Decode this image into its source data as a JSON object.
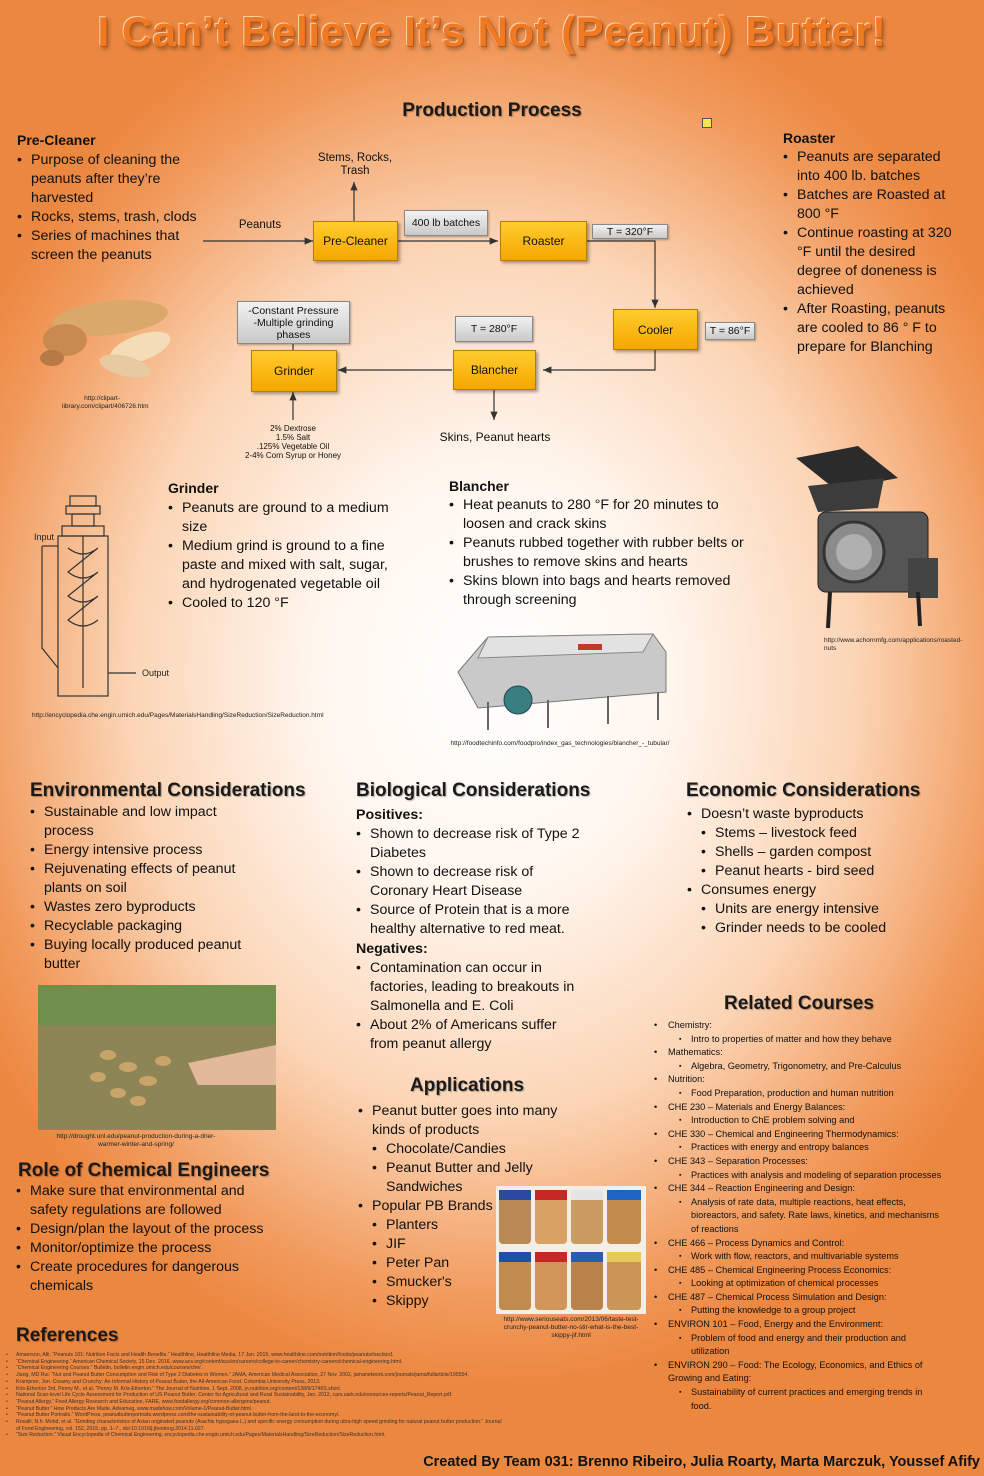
{
  "title": "I Can’t Believe It’s Not (Peanut) Butter!",
  "production": {
    "heading": "Production Process",
    "flow": {
      "stems": "Stems, Rocks, Trash",
      "peanuts": "Peanuts",
      "precleaner": "Pre-Cleaner",
      "batches": "400 lb batches",
      "roaster": "Roaster",
      "t320": "T = 320°F",
      "cooler": "Cooler",
      "t86": "T = 86°F",
      "blancher": "Blancher",
      "t280": "T = 280°F",
      "grinder": "Grinder",
      "pressure": "-Constant Pressure\n-Multiple grinding phases",
      "skins": "Skins, Peanut hearts",
      "additives": "2% Dextrose\n1.5% Salt\n.125% Vegetable Oil\n2-4% Corn Syrup or Honey"
    }
  },
  "precleaner": {
    "heading": "Pre-Cleaner",
    "items": [
      "Purpose of cleaning the peanuts after they’re harvested",
      "Rocks, stems, trash, clods",
      "Series of machines that screen the peanuts"
    ]
  },
  "roaster": {
    "heading": "Roaster",
    "items": [
      "Peanuts are separated into 400 lb. batches",
      "Batches are Roasted at 800 °F",
      "Continue roasting at 320 °F until the desired degree of doneness is achieved",
      "After Roasting, peanuts are cooled to 86 ° F to prepare for Blanching"
    ]
  },
  "grinder": {
    "heading": "Grinder",
    "items": [
      "Peanuts are ground to a medium size",
      "Medium grind is ground to a fine paste and mixed with salt, sugar, and hydrogenated vegetable oil",
      "Cooled to 120 °F"
    ]
  },
  "blancher": {
    "heading": "Blancher",
    "items": [
      "Heat peanuts to 280 °F for 20 minutes to loosen and crack skins",
      "Peanuts rubbed together with rubber belts or brushes to remove skins and hearts",
      "Skins blown into bags and hearts removed through screening"
    ]
  },
  "captions": {
    "peanuts": "http://clipart-library.com/clipart/406726.htm",
    "grinder": "http://encyclopedia.che.engin.umich.edu/Pages/MaterialsHandling/SizeReduction/SizeReduction.html",
    "blancher": "http://foodtechinfo.com/foodpro/index_gas_technologies/blancher_-_tubular/",
    "roaster": "http://www.achornmfg.com/applications/roasted-nuts",
    "plants": "http://drought.unl.edu/peanut-production-during-a-drier-warmer-winter-and-spring/",
    "jars": "http://www.seriouseats.com/2013/06/taste-test-crunchy-peanut-butter-no-stir-what-is-the-best-skippy-jif.html",
    "input": "Input",
    "output": "Output"
  },
  "environmental": {
    "heading": "Environmental Considerations",
    "items": [
      "Sustainable and low impact process",
      "Energy intensive process",
      "Rejuvenating effects of peanut plants on soil",
      "Wastes zero byproducts",
      "Recyclable packaging",
      "Buying locally produced peanut butter"
    ]
  },
  "biological": {
    "heading": "Biological Considerations",
    "positives_label": "Positives:",
    "positives": [
      "Shown to decrease risk of Type 2 Diabetes",
      "Shown to decrease risk of Coronary Heart Disease",
      "Source of Protein that is a more healthy alternative to red meat."
    ],
    "negatives_label": "Negatives:",
    "negatives": [
      "Contamination can occur in factories, leading to breakouts in Salmonella and E. Coli",
      "About 2% of Americans suffer from peanut allergy"
    ]
  },
  "economic": {
    "heading": "Economic Considerations",
    "b1": "Doesn’t waste byproducts",
    "s1": [
      "Stems – livestock feed",
      "Shells – garden compost",
      "Peanut hearts - bird seed"
    ],
    "b2": "Consumes energy",
    "s2": [
      "Units are energy intensive",
      "Grinder needs to be cooled"
    ]
  },
  "applications": {
    "heading": "Applications",
    "b1": "Peanut butter goes into many kinds of products",
    "s1": [
      "Chocolate/Candies",
      "Peanut Butter and Jelly Sandwiches"
    ],
    "b2": "Popular PB Brands",
    "s2": [
      "Planters",
      "JIF",
      "Peter Pan",
      "Smucker's",
      "Skippy"
    ]
  },
  "role": {
    "heading": "Role of Chemical Engineers",
    "items": [
      "Make sure that environmental and safety regulations are followed",
      "Design/plan the layout of the process",
      "Monitor/optimize the process",
      "Create procedures for dangerous chemicals"
    ]
  },
  "courses": {
    "heading": "Related Courses",
    "list": [
      {
        "name": "Chemistry:",
        "detail": "Intro to properties of matter and how they behave"
      },
      {
        "name": "Mathematics:",
        "detail": "Algebra, Geometry, Trigonometry, and Pre-Calculus"
      },
      {
        "name": "Nutrition:",
        "detail": "Food Preparation, production and human nutrition"
      },
      {
        "name": "CHE 230 – Materials and Energy Balances:",
        "detail": "Introduction to ChE problem solving and"
      },
      {
        "name": "CHE 330 – Chemical and Engineering Thermodynamics:",
        "detail": "Practices with energy and entropy balances"
      },
      {
        "name": "CHE 343 – Separation Processes:",
        "detail": "Practices with analysis and modeling of separation processes"
      },
      {
        "name": "CHE 344 – Reaction Engineering and Design:",
        "detail": "Analysis of rate data, multiple reactions, heat effects, bioreactors, and safety. Rate laws, kinetics, and mechanisms of reactions"
      },
      {
        "name": "CHE 466 – Process Dynamics and Control:",
        "detail": "Work with flow, reactors, and multivariable systems"
      },
      {
        "name": "CHE 485 – Chemical Engineering Process Economics:",
        "detail": "Looking at optimization of chemical processes"
      },
      {
        "name": "CHE 487 – Chemical Process Simulation and Design:",
        "detail": "Putting the knowledge to a group project"
      },
      {
        "name": "ENVIRON 101 – Food, Energy and the Environment:",
        "detail": "Problem of food and energy and their production and utilization"
      },
      {
        "name": "ENVIRON 290 – Food: The Ecology, Economics, and Ethics of Growing and Eating:",
        "detail": "Sustainability of current practices and emerging trends in food."
      }
    ]
  },
  "references": {
    "heading": "References",
    "items": [
      "Amaerson, Atli. “Peanuts 101: Nutrition Facts and Health Benefits.” Healthline, Healthline Media, 17 Jan. 2015, www.healthline.com/nutrition/foods/peanuts#section1",
      "“Chemical Engineering.” American Chemical Society, 15 Dec. 2016, www.acs.org/content/acs/en/careers/college-to-career/chemistry-careers/chemical-engineering.html.",
      "“Chemical Engineering Courses.” Bulletin, bulletin.engin.umich.edu/courses/che/.",
      "Jiang, MD Rui. “Nut and Peanut Butter Consumption and Risk of Type 2 Diabetes in Women.” JAMA, American Medical Association, 27 Nov. 2002, jamanetwork.com/journals/jama/fullarticle/195554.",
      "Krampner, Jon. Creamy and Crunchy: An Informal History of Peanut Butter, the All-American Food. Columbia University Press, 2013.",
      "Kris-Etherton 3rd, Penny M., et al. “Penny M. Kris-Etherton.” The Journal of Nutrition, 1 Sept. 2008, jn.nutrition.org/content/138/9/1746S.short.",
      "National Scan-level Life Cycle Assessment for Production of US Peanut Butter. Center for Agricultural and Rural Sustainability, Jan. 2012, cars.uark.edu/resources-reports/Peanut_Report.pdf.",
      "“Peanut Allergy.” Food Allergy Research and Education, FARE, www.foodallergy.org/common-allergens/peanut.",
      "“Peanut Butter.” How Products Are Made, Advameg, www.madehow.com/Volume-1/Peanut-Butter.html.",
      "“Peanut Butter Portraits.” WordPress, peanutbutterportraits.wordpress.com/the-sustainability-of-peanut-butter-from-the-land-to-the-economy/.",
      "Rosalli, N.h. Mohd, et al. “Grinding characteristics of Asian originated peanuts (Arachis hypogaea L.) and specific energy consumption during ultra-high speed grinding for natural peanut butter production.” Journal of Food Engineering, vol. 152, 2015, pp. 1–7., doi:10.1016/j.jfoodeng.2014.11.027.",
      "“Size Reduction.” Visual Encyclopedia of Chemical Engineering, encyclopedia.che.engin.umich.edu/Pages/MaterialsHandling/SizeReduction/SizeReduction.html."
    ]
  },
  "footer": "Created By Team 031: Brenno Ribeiro, Julia Roarty, Marta Marczuk, Youssef Afify"
}
